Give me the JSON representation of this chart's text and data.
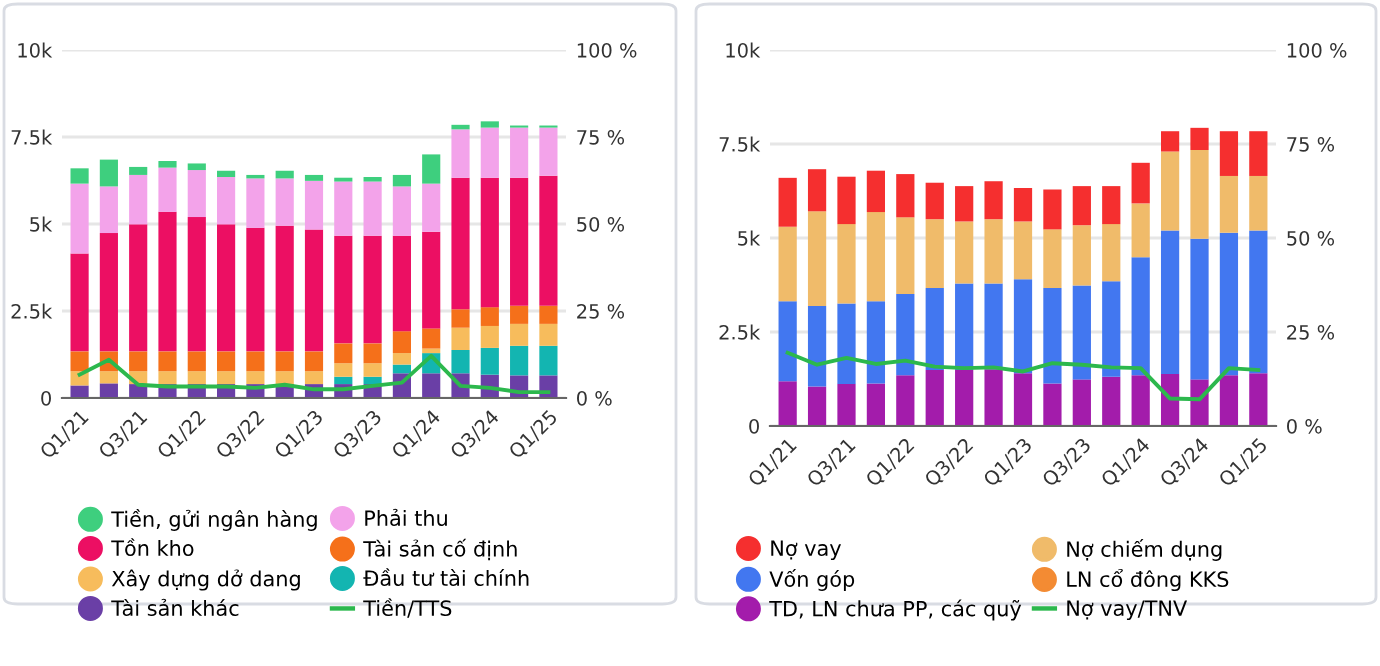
{
  "chart_data": [
    {
      "type": "bar",
      "stacked": true,
      "legend": "bottom",
      "grid": "y",
      "categories": [
        "Q1/21",
        null,
        "Q3/21",
        null,
        "Q1/22",
        null,
        "Q3/22",
        null,
        "Q1/23",
        null,
        "Q3/23",
        null,
        "Q1/24",
        null,
        "Q3/24",
        null,
        "Q1/25"
      ],
      "ylim": [
        0,
        10000
      ],
      "yticks": [
        0,
        {
          "value": 2500,
          "label": "2.5k"
        },
        {
          "value": 5000,
          "label": "5k"
        },
        {
          "value": 7500,
          "label": "7.5k"
        },
        {
          "value": 10000,
          "label": "10k"
        }
      ],
      "y2lim": [
        0,
        100
      ],
      "y2ticks": [
        {
          "value": 0,
          "label": "0 %"
        },
        {
          "value": 25,
          "label": "25 %"
        },
        {
          "value": 50,
          "label": "50 %"
        },
        {
          "value": 75,
          "label": "75 %"
        },
        {
          "value": 100,
          "label": "100 %"
        }
      ],
      "series": [
        {
          "name": "Tài sản khác",
          "color": "#6a3fa6",
          "values": [
            360,
            420,
            400,
            400,
            400,
            400,
            400,
            400,
            400,
            400,
            400,
            710,
            710,
            710,
            670,
            650,
            650
          ]
        },
        {
          "name": "Đầu tư tài chính",
          "color": "#13b5b1",
          "values": [
            0,
            0,
            0,
            0,
            0,
            0,
            0,
            0,
            0,
            210,
            210,
            250,
            580,
            670,
            770,
            850,
            850
          ]
        },
        {
          "name": "Xây dựng dở dang",
          "color": "#f7bc5c",
          "values": [
            410,
            350,
            370,
            370,
            370,
            370,
            370,
            370,
            370,
            390,
            390,
            330,
            130,
            640,
            630,
            630,
            630
          ]
        },
        {
          "name": "Tài sản cố định",
          "color": "#f5701a",
          "values": [
            570,
            570,
            570,
            570,
            570,
            570,
            570,
            570,
            570,
            570,
            570,
            630,
            580,
            530,
            540,
            520,
            520
          ]
        },
        {
          "name": "Tồn kho",
          "color": "#ec0f63",
          "values": [
            2810,
            3400,
            3650,
            4010,
            3860,
            3650,
            3550,
            3610,
            3500,
            3090,
            3090,
            2740,
            2780,
            3780,
            3720,
            3680,
            3740
          ]
        },
        {
          "name": "Phải thu",
          "color": "#f3a3ea",
          "values": [
            2010,
            1340,
            1420,
            1270,
            1350,
            1360,
            1420,
            1360,
            1400,
            1560,
            1560,
            1420,
            1380,
            1390,
            1440,
            1440,
            1380
          ]
        },
        {
          "name": "Tiền, gửi ngân hàng",
          "color": "#3ecf7e",
          "values": [
            440,
            770,
            230,
            190,
            190,
            180,
            100,
            220,
            170,
            110,
            130,
            330,
            840,
            130,
            180,
            60,
            60
          ]
        },
        {
          "name": "Tiền/TTS",
          "type": "line",
          "axis": "y2",
          "color": "#2cb84d",
          "values": [
            6.7,
            11,
            3.8,
            3.3,
            3.3,
            3.3,
            2.9,
            3.8,
            2.5,
            2.5,
            3.5,
            4.4,
            12.1,
            3.5,
            2.9,
            1.7,
            1.7
          ]
        }
      ]
    },
    {
      "type": "bar",
      "stacked": true,
      "legend": "bottom",
      "grid": "y",
      "categories": [
        "Q1/21",
        null,
        "Q3/21",
        null,
        "Q1/22",
        null,
        "Q3/22",
        null,
        "Q1/23",
        null,
        "Q3/23",
        null,
        "Q1/24",
        null,
        "Q3/24",
        null,
        "Q1/25"
      ],
      "ylim": [
        0,
        10000
      ],
      "yticks": [
        0,
        {
          "value": 2500,
          "label": "2.5k"
        },
        {
          "value": 5000,
          "label": "5k"
        },
        {
          "value": 7500,
          "label": "7.5k"
        },
        {
          "value": 10000,
          "label": "10k"
        }
      ],
      "y2lim": [
        0,
        100
      ],
      "y2ticks": [
        {
          "value": 0,
          "label": "0 %"
        },
        {
          "value": 25,
          "label": "25 %"
        },
        {
          "value": 50,
          "label": "50 %"
        },
        {
          "value": 75,
          "label": "75 %"
        },
        {
          "value": 100,
          "label": "100 %"
        }
      ],
      "series": [
        {
          "name": "TD, LN chưa PP, các quỹ",
          "color": "#a31cab",
          "values": [
            1190,
            1050,
            1120,
            1130,
            1350,
            1490,
            1490,
            1510,
            1400,
            1130,
            1240,
            1310,
            1350,
            1380,
            1240,
            1350,
            1400
          ]
        },
        {
          "name": "LN cổ đông KKS",
          "color": "#f38b33",
          "values": [
            0,
            0,
            0,
            0,
            0,
            0,
            0,
            0,
            0,
            0,
            0,
            0,
            0,
            0,
            0,
            0,
            0
          ]
        },
        {
          "name": "Vốn góp",
          "color": "#4277f0",
          "values": [
            2130,
            2140,
            2140,
            2190,
            2160,
            2180,
            2300,
            2280,
            2500,
            2540,
            2500,
            2540,
            3140,
            3820,
            3740,
            3790,
            3800
          ]
        },
        {
          "name": "Nợ chiếm dụng",
          "color": "#f0bb6a",
          "values": [
            1980,
            2520,
            2110,
            2370,
            2040,
            1830,
            1650,
            1710,
            1540,
            1560,
            1600,
            1520,
            1430,
            2100,
            2360,
            1510,
            1450
          ]
        },
        {
          "name": "Nợ vay",
          "color": "#f52f2f",
          "values": [
            1300,
            1120,
            1260,
            1100,
            1150,
            970,
            940,
            1010,
            890,
            1060,
            1040,
            1010,
            1080,
            540,
            590,
            1190,
            1190
          ]
        },
        {
          "name": "Nợ vay/TNV",
          "type": "line",
          "axis": "y2",
          "color": "#2cb84d",
          "values": [
            19.5,
            16.3,
            18.1,
            16.5,
            17.4,
            15.8,
            15.4,
            15.6,
            14.5,
            16.7,
            16.3,
            15.6,
            15.4,
            7.3,
            7.1,
            15.4,
            14.9
          ]
        }
      ]
    }
  ]
}
